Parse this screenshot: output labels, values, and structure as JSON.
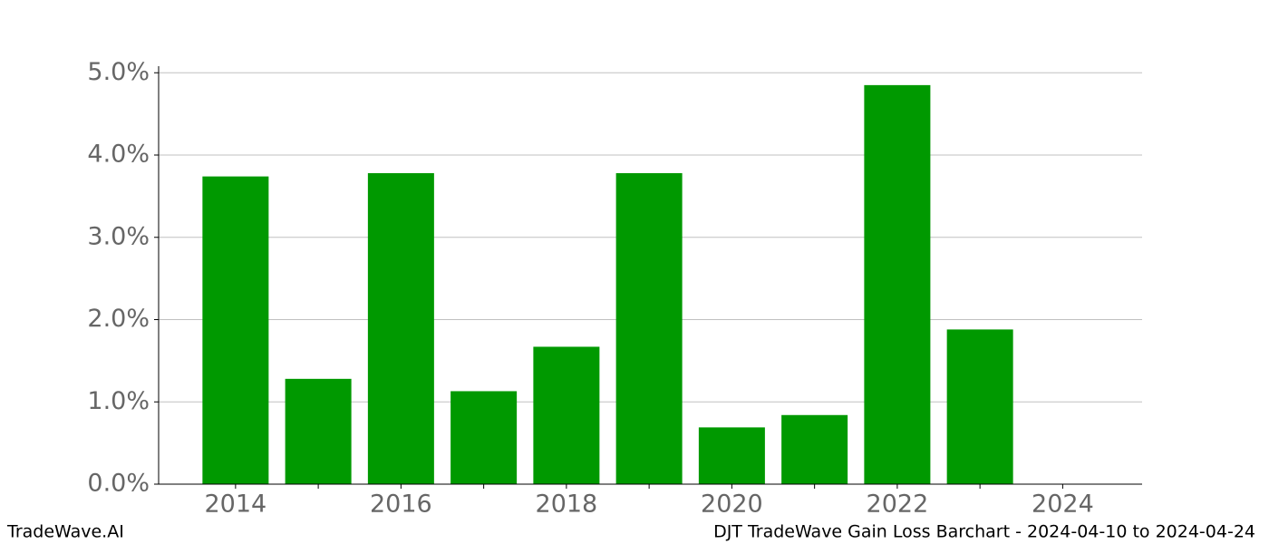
{
  "chart_data": {
    "type": "bar",
    "x": [
      2014,
      2015,
      2016,
      2017,
      2018,
      2019,
      2020,
      2021,
      2022,
      2023
    ],
    "values": [
      3.74,
      1.28,
      3.78,
      1.13,
      1.67,
      3.78,
      0.69,
      0.84,
      4.85,
      1.88
    ],
    "color": "#009900",
    "xlim": [
      2013.07,
      2024.96
    ],
    "xticks": [
      2014,
      2016,
      2018,
      2020,
      2022,
      2024
    ],
    "xminor_ticks": [
      2015,
      2017,
      2019,
      2021,
      2023
    ],
    "ylim": [
      0,
      5.08
    ],
    "yticks": [
      {
        "value": 0,
        "label": "0.0%"
      },
      {
        "value": 1,
        "label": "1.0%"
      },
      {
        "value": 2,
        "label": "2.0%"
      },
      {
        "value": 3,
        "label": "3.0%"
      },
      {
        "value": 4,
        "label": "4.0%"
      },
      {
        "value": 5,
        "label": "5.0%"
      }
    ],
    "grid": true
  },
  "footer": {
    "left": "TradeWave.AI",
    "right": "DJT TradeWave Gain Loss Barchart - 2024-04-10 to 2024-04-24"
  }
}
